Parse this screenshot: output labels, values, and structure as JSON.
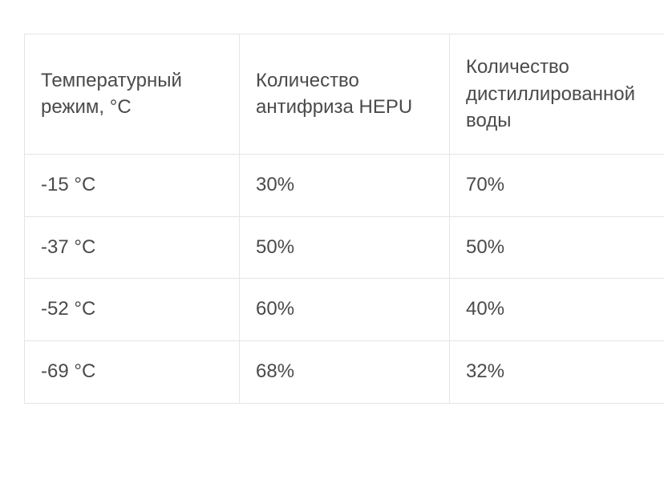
{
  "table": {
    "columns": [
      "Температурный режим, °C",
      "Количество антифриза HEPU",
      "Количество дистиллированной воды"
    ],
    "rows": [
      [
        "-15 °C",
        "30%",
        "70%"
      ],
      [
        "-37 °C",
        "50%",
        "50%"
      ],
      [
        "-52 °C",
        "60%",
        "40%"
      ],
      [
        "-69 °C",
        "68%",
        "32%"
      ]
    ],
    "border_color": "#e5e5e5",
    "text_color": "#4a4a4a",
    "background_color": "#ffffff",
    "header_fontsize": 24,
    "cell_fontsize": 24
  }
}
